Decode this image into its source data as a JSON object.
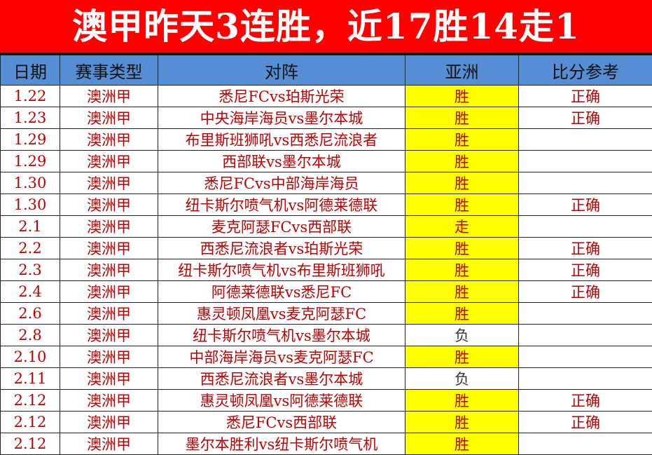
{
  "title": "澳甲昨天3连胜，近17胜14走1",
  "colors": {
    "title_bg": "#ff0000",
    "header_bg": "#558ed5",
    "text": "#c00000",
    "win_bg": "#ffff00"
  },
  "headers": [
    "日期",
    "赛事类型",
    "对阵",
    "亚洲",
    "比分参考"
  ],
  "rows": [
    {
      "date": "1.22",
      "type": "澳洲甲",
      "match": "悉尼FCvs珀斯光荣",
      "asia": "胜",
      "score": "正确"
    },
    {
      "date": "1.23",
      "type": "澳洲甲",
      "match": "中央海岸海员vs墨尔本城",
      "asia": "胜",
      "score": "正确"
    },
    {
      "date": "1.29",
      "type": "澳洲甲",
      "match": "布里斯班狮吼vs西悉尼流浪者",
      "asia": "胜",
      "score": ""
    },
    {
      "date": "1.29",
      "type": "澳洲甲",
      "match": "西部联vs墨尔本城",
      "asia": "胜",
      "score": ""
    },
    {
      "date": "1.30",
      "type": "澳洲甲",
      "match": "悉尼FCvs中部海岸海员",
      "asia": "胜",
      "score": ""
    },
    {
      "date": "1.30",
      "type": "澳洲甲",
      "match": "纽卡斯尔喷气机vs阿德莱德联",
      "asia": "胜",
      "score": "正确"
    },
    {
      "date": "2.1",
      "type": "澳洲甲",
      "match": "麦克阿瑟FCvs西部联",
      "asia": "走",
      "score": ""
    },
    {
      "date": "2.2",
      "type": "澳洲甲",
      "match": "西悉尼流浪者vs珀斯光荣",
      "asia": "胜",
      "score": "正确"
    },
    {
      "date": "2.3",
      "type": "澳洲甲",
      "match": "纽卡斯尔喷气机vs布里斯班狮吼",
      "asia": "胜",
      "score": "正确"
    },
    {
      "date": "2.4",
      "type": "澳洲甲",
      "match": "阿德莱德联vs悉尼FC",
      "asia": "胜",
      "score": "正确"
    },
    {
      "date": "2.6",
      "type": "澳洲甲",
      "match": "惠灵顿凤凰vs麦克阿瑟FC",
      "asia": "胜",
      "score": ""
    },
    {
      "date": "2.8",
      "type": "澳洲甲",
      "match": "纽卡斯尔喷气机vs墨尔本城",
      "asia": "负",
      "score": ""
    },
    {
      "date": "2.10",
      "type": "澳洲甲",
      "match": "中部海岸海员vs麦克阿瑟FC",
      "asia": "胜",
      "score": ""
    },
    {
      "date": "2.11",
      "type": "澳洲甲",
      "match": "西悉尼流浪者vs墨尔本城",
      "asia": "负",
      "score": ""
    },
    {
      "date": "2.12",
      "type": "澳洲甲",
      "match": "惠灵顿凤凰vs阿德莱德联",
      "asia": "胜",
      "score": "正确"
    },
    {
      "date": "2.12",
      "type": "澳洲甲",
      "match": "悉尼FCvs西部联",
      "asia": "胜",
      "score": "正确"
    },
    {
      "date": "2.12",
      "type": "澳洲甲",
      "match": "墨尔本胜利vs纽卡斯尔喷气机",
      "asia": "胜",
      "score": ""
    }
  ]
}
